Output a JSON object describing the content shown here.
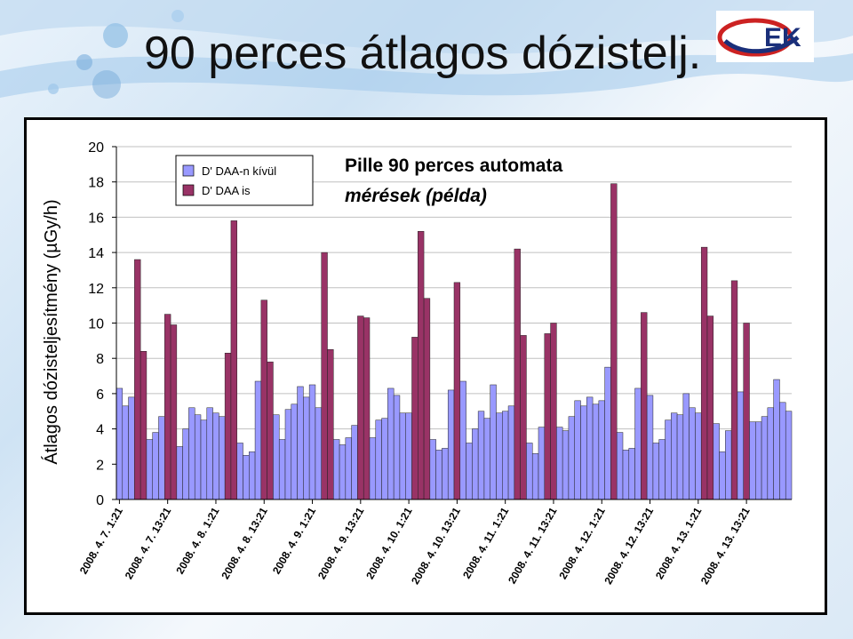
{
  "slide": {
    "title": "90 perces átlagos dózistelj.",
    "logo_text": "EK",
    "colors": {
      "title": "#111111"
    }
  },
  "chart_data": {
    "type": "bar",
    "title": "Pille 90 perces automata",
    "subtitle": "mérések (példa)",
    "xlabel": "",
    "ylabel": "Átlagos dózisteljesítmény (µGy/h)",
    "ylim": [
      0,
      20
    ],
    "yticks": [
      0,
      2,
      4,
      6,
      8,
      10,
      12,
      14,
      16,
      18,
      20
    ],
    "grid": true,
    "legend_position": "top-left",
    "xtick_labels": [
      "2008. 4. 7. 1:21",
      "2008. 4. 7. 13:21",
      "2008. 4. 8. 1:21",
      "2008. 4. 8. 13:21",
      "2008. 4. 9. 1:21",
      "2008. 4. 9. 13:21",
      "2008. 4. 10. 1:21",
      "2008. 4. 10. 13:21",
      "2008. 4. 11. 1:21",
      "2008. 4. 11. 13:21",
      "2008. 4. 12. 1:21",
      "2008. 4. 12. 13:21",
      "2008. 4. 13. 1:21",
      "2008. 4. 13. 13:21"
    ],
    "series": [
      {
        "name": "D' DAA-n kívül",
        "color": "#9999ff"
      },
      {
        "name": "D' DAA is",
        "color": "#993366"
      }
    ],
    "values": [
      6.3,
      5.3,
      5.8,
      13.6,
      8.4,
      3.4,
      3.8,
      4.7,
      10.5,
      9.9,
      3.0,
      4.0,
      5.2,
      4.8,
      4.5,
      5.2,
      4.9,
      4.7,
      8.3,
      15.8,
      3.2,
      2.5,
      2.7,
      6.7,
      11.3,
      7.8,
      4.8,
      3.4,
      5.1,
      5.4,
      6.4,
      5.8,
      6.5,
      5.2,
      14.0,
      8.5,
      3.4,
      3.1,
      3.5,
      4.2,
      10.4,
      10.3,
      3.5,
      4.5,
      4.6,
      6.3,
      5.9,
      4.9,
      4.9,
      9.2,
      15.2,
      11.4,
      3.4,
      2.8,
      2.9,
      6.2,
      12.3,
      6.7,
      3.2,
      4.0,
      5.0,
      4.6,
      6.5,
      4.9,
      5.0,
      5.3,
      14.2,
      9.3,
      3.2,
      2.6,
      4.1,
      9.4,
      10.0,
      4.1,
      3.9,
      4.7,
      5.6,
      5.3,
      5.8,
      5.4,
      5.6,
      7.5,
      17.9,
      3.8,
      2.8,
      2.9,
      6.3,
      10.6,
      5.9,
      3.2,
      3.4,
      4.5,
      4.9,
      4.8,
      6.0,
      5.2,
      4.9,
      14.3,
      10.4,
      4.3,
      2.7,
      3.9,
      12.4,
      6.1,
      10.0,
      4.4,
      4.4,
      4.7,
      5.2,
      6.8,
      5.5,
      5.0
    ],
    "value_series": [
      0,
      0,
      0,
      1,
      1,
      0,
      0,
      0,
      1,
      1,
      0,
      0,
      0,
      0,
      0,
      0,
      0,
      0,
      1,
      1,
      0,
      0,
      0,
      0,
      1,
      1,
      0,
      0,
      0,
      0,
      0,
      0,
      0,
      0,
      1,
      1,
      0,
      0,
      0,
      0,
      1,
      1,
      0,
      0,
      0,
      0,
      0,
      0,
      0,
      1,
      1,
      1,
      0,
      0,
      0,
      0,
      1,
      0,
      0,
      0,
      0,
      0,
      0,
      0,
      0,
      0,
      1,
      1,
      0,
      0,
      0,
      1,
      1,
      0,
      0,
      0,
      0,
      0,
      0,
      0,
      0,
      0,
      1,
      0,
      0,
      0,
      0,
      1,
      0,
      0,
      0,
      0,
      0,
      0,
      0,
      0,
      0,
      1,
      1,
      0,
      0,
      0,
      1,
      0,
      1,
      0,
      0,
      0,
      0,
      0,
      0,
      0
    ]
  }
}
